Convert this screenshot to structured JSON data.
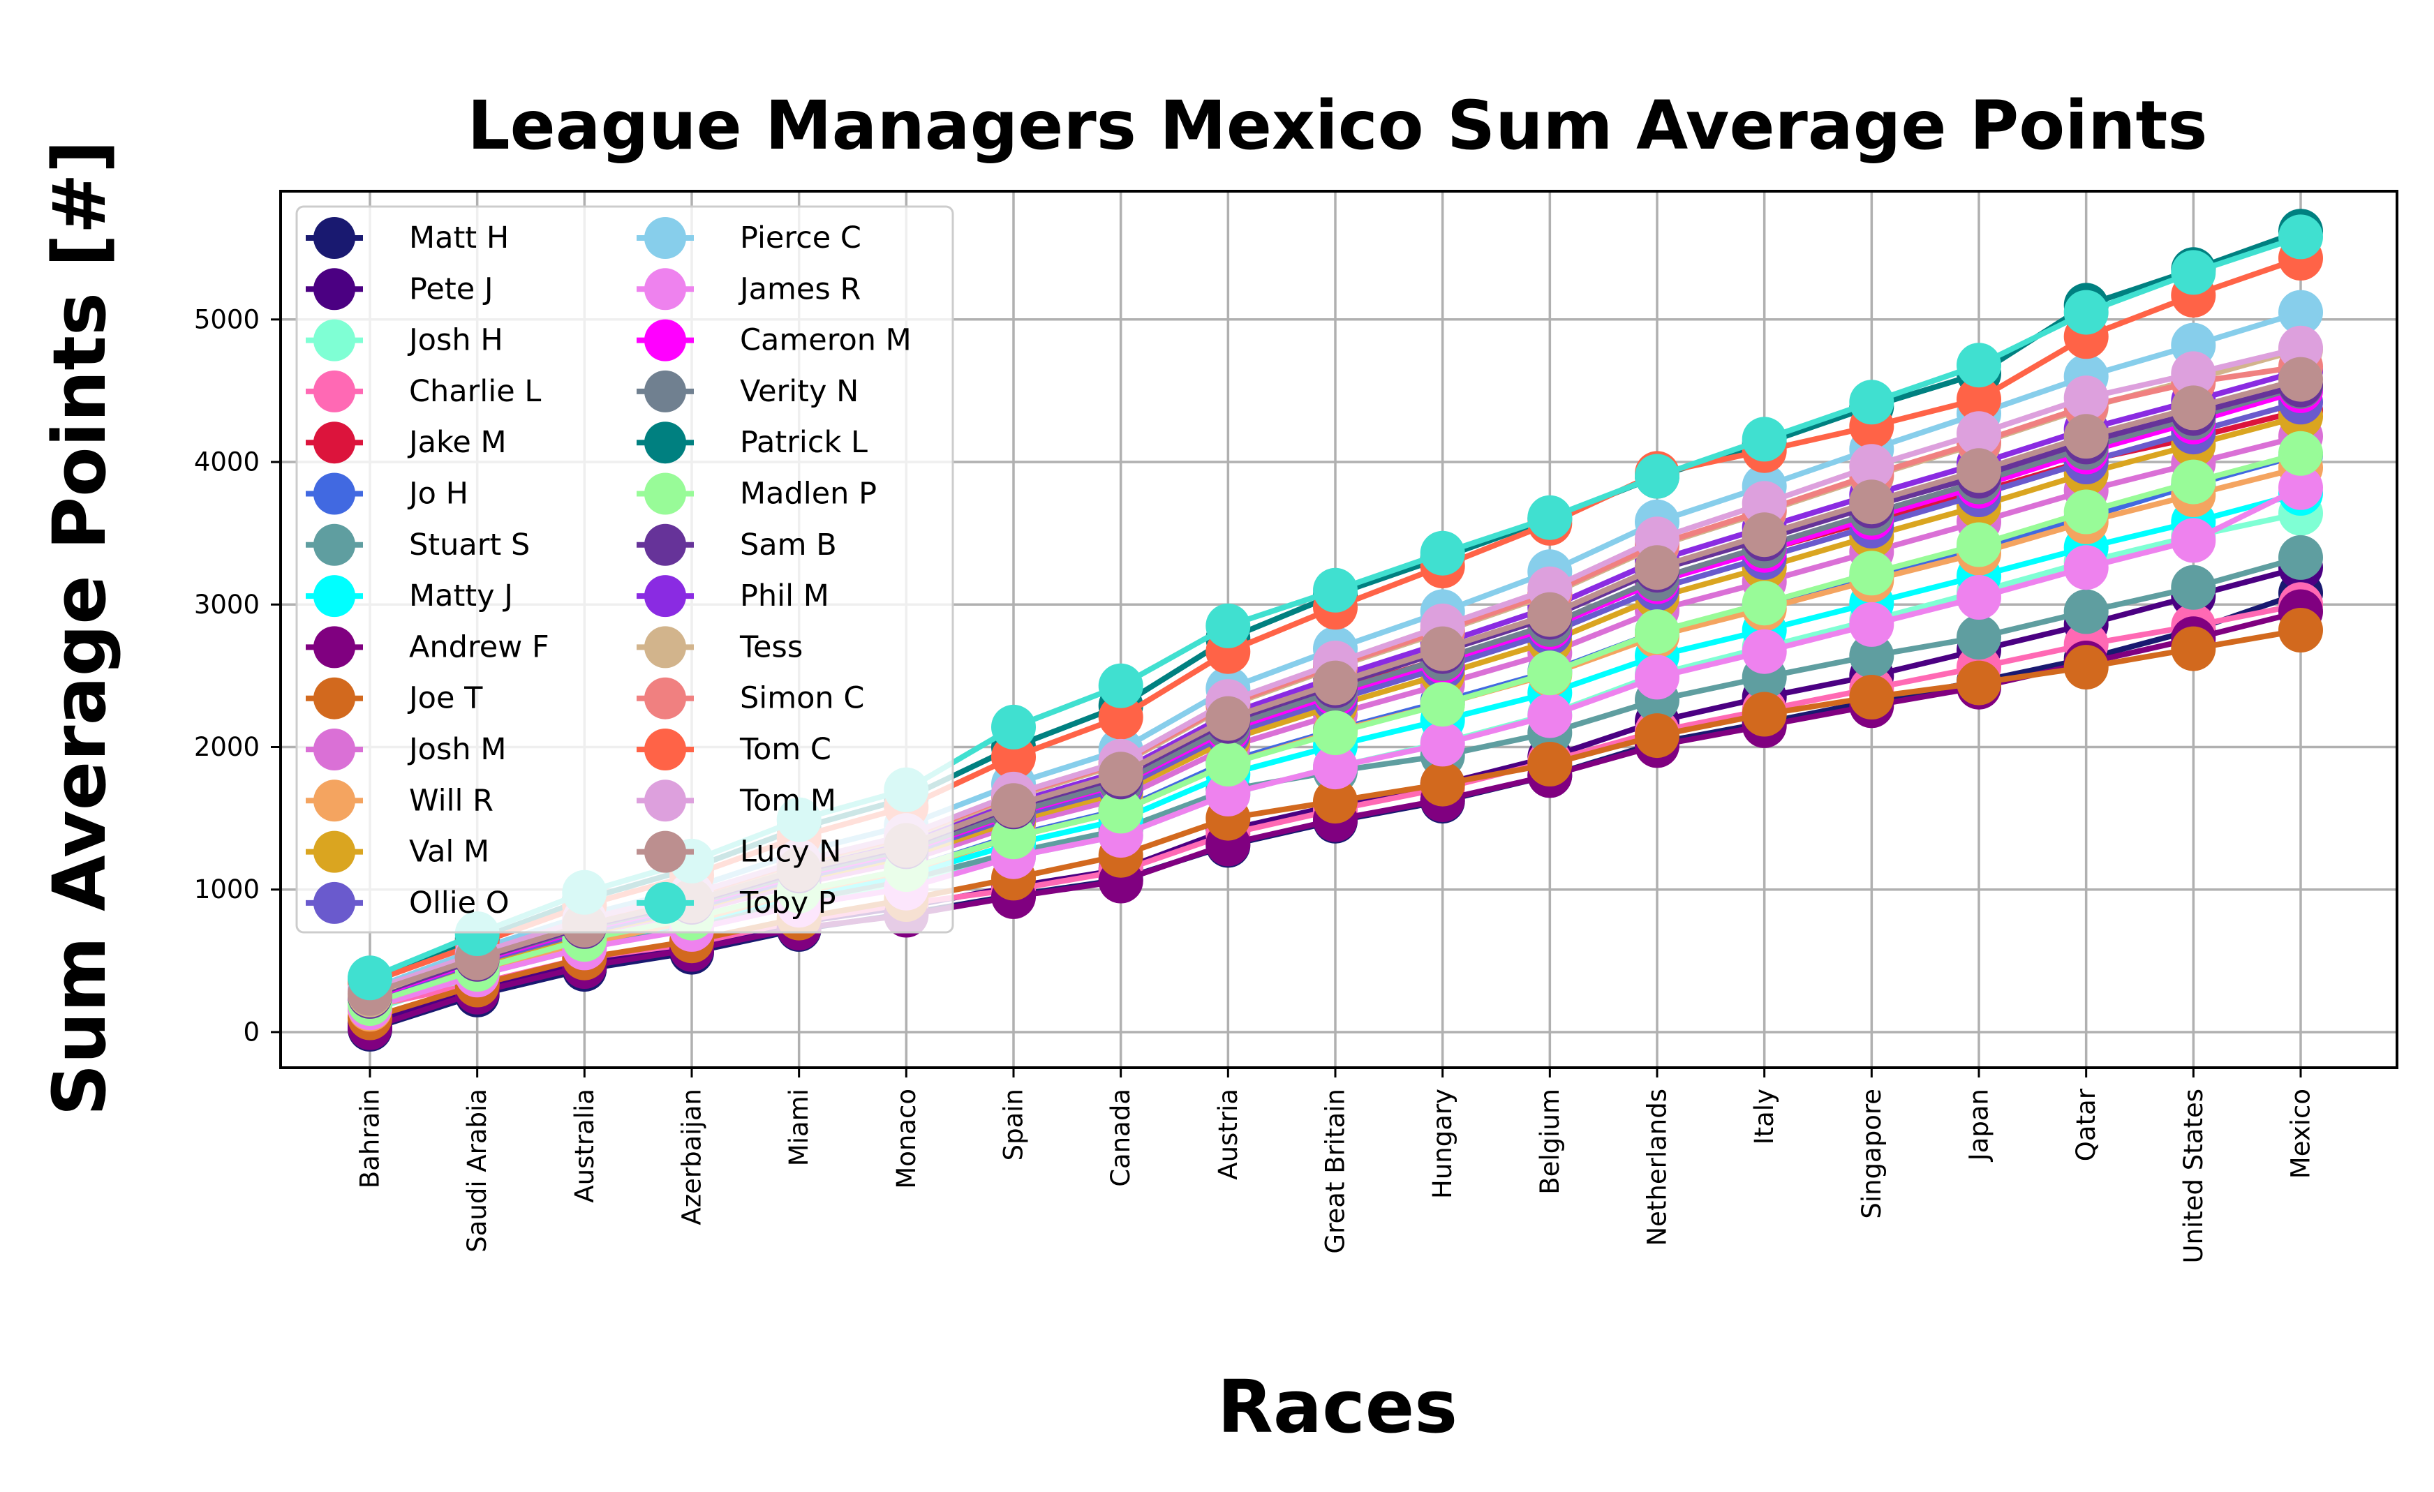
{
  "chart_data": {
    "type": "line",
    "title": "League Managers Mexico Sum Average Points",
    "xlabel": "Races",
    "ylabel": "Sum Average Points [#]",
    "categories": [
      "Bahrain",
      "Saudi Arabia",
      "Australia",
      "Azerbaijan",
      "Miami",
      "Monaco",
      "Spain",
      "Canada",
      "Austria",
      "Great Britain",
      "Hungary",
      "Belgium",
      "Netherlands",
      "Italy",
      "Singapore",
      "Japan",
      "Qatar",
      "United States",
      "Mexico"
    ],
    "yticks": [
      0,
      1000,
      2000,
      3000,
      4000,
      5000
    ],
    "ylim": [
      -250,
      5900
    ],
    "grid": true,
    "legend_position": "upper left",
    "legend_columns": 2,
    "series": [
      {
        "name": "Matt H",
        "color": "#191970",
        "values": [
          20,
          260,
          440,
          560,
          720,
          830,
          960,
          1070,
          1310,
          1480,
          1620,
          1800,
          2030,
          2170,
          2320,
          2460,
          2620,
          2820,
          3080
        ]
      },
      {
        "name": "Pete J",
        "color": "#4b0082",
        "values": [
          60,
          300,
          480,
          610,
          770,
          880,
          1020,
          1140,
          1420,
          1590,
          1740,
          1930,
          2180,
          2350,
          2500,
          2680,
          2860,
          3060,
          3260
        ]
      },
      {
        "name": "Josh H",
        "color": "#7fffd4",
        "values": [
          150,
          400,
          590,
          740,
          920,
          1050,
          1230,
          1380,
          1670,
          1860,
          2030,
          2230,
          2510,
          2700,
          2890,
          3090,
          3300,
          3480,
          3640
        ]
      },
      {
        "name": "Charlie L",
        "color": "#ff69b4",
        "values": [
          180,
          340,
          520,
          620,
          780,
          900,
          1000,
          1130,
          1390,
          1560,
          1710,
          1900,
          2110,
          2260,
          2410,
          2560,
          2720,
          2850,
          3000
        ]
      },
      {
        "name": "Jake M",
        "color": "#dc143c",
        "values": [
          260,
          520,
          740,
          910,
          1120,
          1280,
          1560,
          1760,
          2160,
          2400,
          2620,
          2850,
          3180,
          3380,
          3590,
          3790,
          4010,
          4170,
          4360
        ]
      },
      {
        "name": "Jo H",
        "color": "#4169e1",
        "values": [
          200,
          450,
          650,
          800,
          990,
          1140,
          1380,
          1560,
          1900,
          2120,
          2320,
          2530,
          2810,
          3000,
          3200,
          3400,
          3610,
          3840,
          4050
        ]
      },
      {
        "name": "Stuart S",
        "color": "#5f9ea0",
        "values": [
          170,
          420,
          610,
          760,
          920,
          1070,
          1260,
          1420,
          1700,
          1830,
          1940,
          2100,
          2330,
          2490,
          2640,
          2770,
          2950,
          3120,
          3330
        ]
      },
      {
        "name": "Matty J",
        "color": "#00ffff",
        "values": [
          190,
          430,
          630,
          770,
          960,
          1100,
          1320,
          1490,
          1810,
          2010,
          2190,
          2380,
          2640,
          2820,
          3010,
          3200,
          3400,
          3580,
          3780
        ]
      },
      {
        "name": "Andrew F",
        "color": "#800080",
        "values": [
          30,
          280,
          460,
          580,
          730,
          820,
          950,
          1060,
          1320,
          1490,
          1630,
          1800,
          2010,
          2150,
          2290,
          2420,
          2590,
          2760,
          2950
        ]
      },
      {
        "name": "Joe T",
        "color": "#d2691e",
        "values": [
          100,
          330,
          520,
          640,
          800,
          930,
          1080,
          1240,
          1500,
          1620,
          1740,
          1880,
          2080,
          2230,
          2350,
          2450,
          2560,
          2690,
          2820
        ]
      },
      {
        "name": "Josh M",
        "color": "#da70d6",
        "values": [
          220,
          470,
          680,
          840,
          1040,
          1200,
          1450,
          1640,
          2000,
          2230,
          2440,
          2660,
          2960,
          3160,
          3370,
          3580,
          3800,
          3990,
          4180
        ]
      },
      {
        "name": "Will R",
        "color": "#f4a460",
        "values": [
          160,
          420,
          620,
          780,
          980,
          1130,
          1370,
          1550,
          1880,
          2110,
          2300,
          2510,
          2780,
          2970,
          3170,
          3360,
          3580,
          3770,
          3960
        ]
      },
      {
        "name": "Val M",
        "color": "#daa520",
        "values": [
          210,
          470,
          690,
          860,
          1070,
          1230,
          1480,
          1680,
          2050,
          2290,
          2510,
          2740,
          3050,
          3260,
          3480,
          3690,
          3920,
          4120,
          4320
        ]
      },
      {
        "name": "Ollie O",
        "color": "#6a5acd",
        "values": [
          230,
          490,
          700,
          870,
          1080,
          1250,
          1510,
          1710,
          2090,
          2330,
          2560,
          2800,
          3110,
          3330,
          3550,
          3770,
          4000,
          4210,
          4420
        ]
      },
      {
        "name": "Pierce C",
        "color": "#87ceeb",
        "values": [
          300,
          580,
          820,
          1010,
          1260,
          1450,
          1740,
          1980,
          2410,
          2690,
          2950,
          3230,
          3580,
          3830,
          4090,
          4340,
          4600,
          4820,
          5050
        ]
      },
      {
        "name": "James R",
        "color": "#ee82ee",
        "values": [
          170,
          400,
          590,
          720,
          890,
          1010,
          1230,
          1380,
          1670,
          1860,
          2020,
          2220,
          2490,
          2670,
          2860,
          3050,
          3260,
          3450,
          3820
        ]
      },
      {
        "name": "Cameron M",
        "color": "#ff00ff",
        "values": [
          240,
          500,
          720,
          890,
          1100,
          1270,
          1530,
          1740,
          2120,
          2370,
          2600,
          2840,
          3160,
          3380,
          3610,
          3830,
          4070,
          4280,
          4500
        ]
      },
      {
        "name": "Verity N",
        "color": "#708090",
        "values": [
          250,
          510,
          730,
          900,
          1110,
          1280,
          1540,
          1750,
          2140,
          2390,
          2620,
          2860,
          3180,
          3410,
          3640,
          3860,
          4100,
          4310,
          4530
        ]
      },
      {
        "name": "Patrick L",
        "color": "#008080",
        "values": [
          370,
          650,
          930,
          1150,
          1430,
          1640,
          2000,
          2290,
          2760,
          3070,
          3330,
          3600,
          3900,
          4130,
          4390,
          4620,
          5100,
          5350,
          5620
        ]
      },
      {
        "name": "Madlen P",
        "color": "#98fb98",
        "values": [
          200,
          440,
          650,
          800,
          990,
          1140,
          1370,
          1550,
          1880,
          2100,
          2300,
          2520,
          2810,
          3010,
          3220,
          3420,
          3650,
          3860,
          4060
        ]
      },
      {
        "name": "Sam B",
        "color": "#663399",
        "values": [
          250,
          510,
          740,
          910,
          1130,
          1300,
          1580,
          1790,
          2180,
          2430,
          2670,
          2910,
          3240,
          3460,
          3690,
          3900,
          4140,
          4340,
          4540
        ]
      },
      {
        "name": "Phil M",
        "color": "#8a2be2",
        "values": [
          270,
          530,
          760,
          940,
          1160,
          1330,
          1610,
          1830,
          2230,
          2490,
          2730,
          2980,
          3310,
          3540,
          3770,
          3990,
          4230,
          4430,
          4640
        ]
      },
      {
        "name": "Tess",
        "color": "#d2b48c",
        "values": [
          260,
          530,
          770,
          950,
          1180,
          1360,
          1650,
          1880,
          2290,
          2560,
          2810,
          3070,
          3410,
          3650,
          3900,
          4130,
          4380,
          4580,
          4790
        ]
      },
      {
        "name": "Simon C",
        "color": "#f08080",
        "values": [
          280,
          540,
          780,
          960,
          1190,
          1370,
          1660,
          1890,
          2300,
          2570,
          2820,
          3080,
          3420,
          3660,
          3910,
          4140,
          4390,
          4560,
          4670
        ]
      },
      {
        "name": "Tom C",
        "color": "#ff6347",
        "values": [
          350,
          620,
          890,
          1100,
          1370,
          1580,
          1930,
          2210,
          2670,
          2980,
          3270,
          3570,
          3920,
          4080,
          4250,
          4440,
          4880,
          5170,
          5430
        ]
      },
      {
        "name": "Tom M",
        "color": "#dda0dd",
        "values": [
          290,
          550,
          790,
          970,
          1200,
          1380,
          1670,
          1900,
          2320,
          2590,
          2850,
          3110,
          3460,
          3710,
          3970,
          4200,
          4450,
          4620,
          4800
        ]
      },
      {
        "name": "Lucy N",
        "color": "#bc8f8f",
        "values": [
          270,
          520,
          750,
          920,
          1140,
          1310,
          1590,
          1810,
          2200,
          2450,
          2690,
          2930,
          3260,
          3490,
          3720,
          3940,
          4180,
          4380,
          4580
        ]
      },
      {
        "name": "Toby P",
        "color": "#40e0d0",
        "values": [
          380,
          690,
          980,
          1200,
          1490,
          1700,
          2140,
          2430,
          2850,
          3100,
          3360,
          3610,
          3900,
          4160,
          4420,
          4680,
          5050,
          5330,
          5580
        ]
      }
    ]
  }
}
